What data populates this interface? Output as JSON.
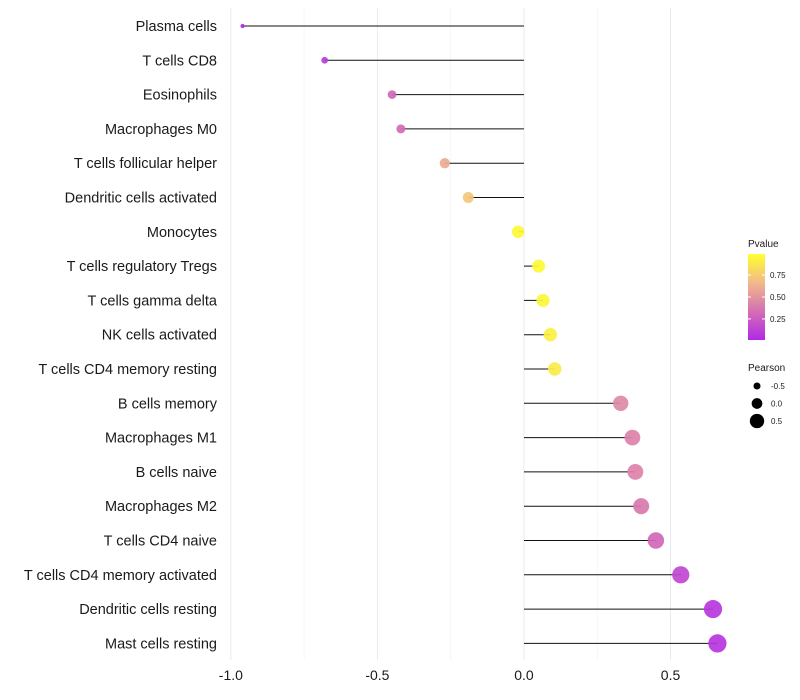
{
  "chart_data": {
    "type": "lollipop",
    "title": "",
    "xlabel": "",
    "ylabel": "",
    "xlim": [
      -1.02,
      0.72
    ],
    "x_ticks": [
      -1.0,
      -0.5,
      0.0,
      0.5
    ],
    "x_tick_labels": [
      "-1.0",
      "-0.5",
      "0.0",
      "0.5"
    ],
    "grid": "vertical-only",
    "categories": [
      "Plasma cells",
      "T cells CD8",
      "Eosinophils",
      "Macrophages M0",
      "T cells follicular helper",
      "Dendritic cells activated",
      "Monocytes",
      "T cells regulatory  Tregs ",
      "T cells gamma delta",
      "NK cells activated",
      "T cells CD4 memory resting",
      "B cells memory",
      "Macrophages M1",
      "B cells naive",
      "Macrophages M2",
      "T cells CD4 naive",
      "T cells CD4 memory activated",
      "Dendritic cells resting",
      "Mast cells resting"
    ],
    "pearson": [
      -0.96,
      -0.68,
      -0.45,
      -0.42,
      -0.27,
      -0.19,
      -0.02,
      0.05,
      0.065,
      0.09,
      0.105,
      0.33,
      0.37,
      0.38,
      0.4,
      0.45,
      0.535,
      0.645,
      0.66
    ],
    "pvalue": [
      0.02,
      0.1,
      0.3,
      0.32,
      0.6,
      0.72,
      0.96,
      0.96,
      0.95,
      0.92,
      0.9,
      0.45,
      0.42,
      0.42,
      0.38,
      0.3,
      0.15,
      0.08,
      0.07
    ],
    "legend": {
      "position": "right",
      "color": {
        "title": "Pvalue",
        "ticks": [
          0.25,
          0.5,
          0.75
        ],
        "tick_labels": [
          "0.25",
          "0.50",
          "0.75"
        ],
        "range": [
          0.01,
          0.99
        ],
        "colors": [
          "#b128e8",
          "#d46fb3",
          "#f2b98a",
          "#ffff2e"
        ]
      },
      "size": {
        "title": "Pearson",
        "values": [
          -0.5,
          0.0,
          0.5
        ],
        "labels": [
          "-0.5",
          "0.0",
          "0.5"
        ]
      }
    }
  }
}
